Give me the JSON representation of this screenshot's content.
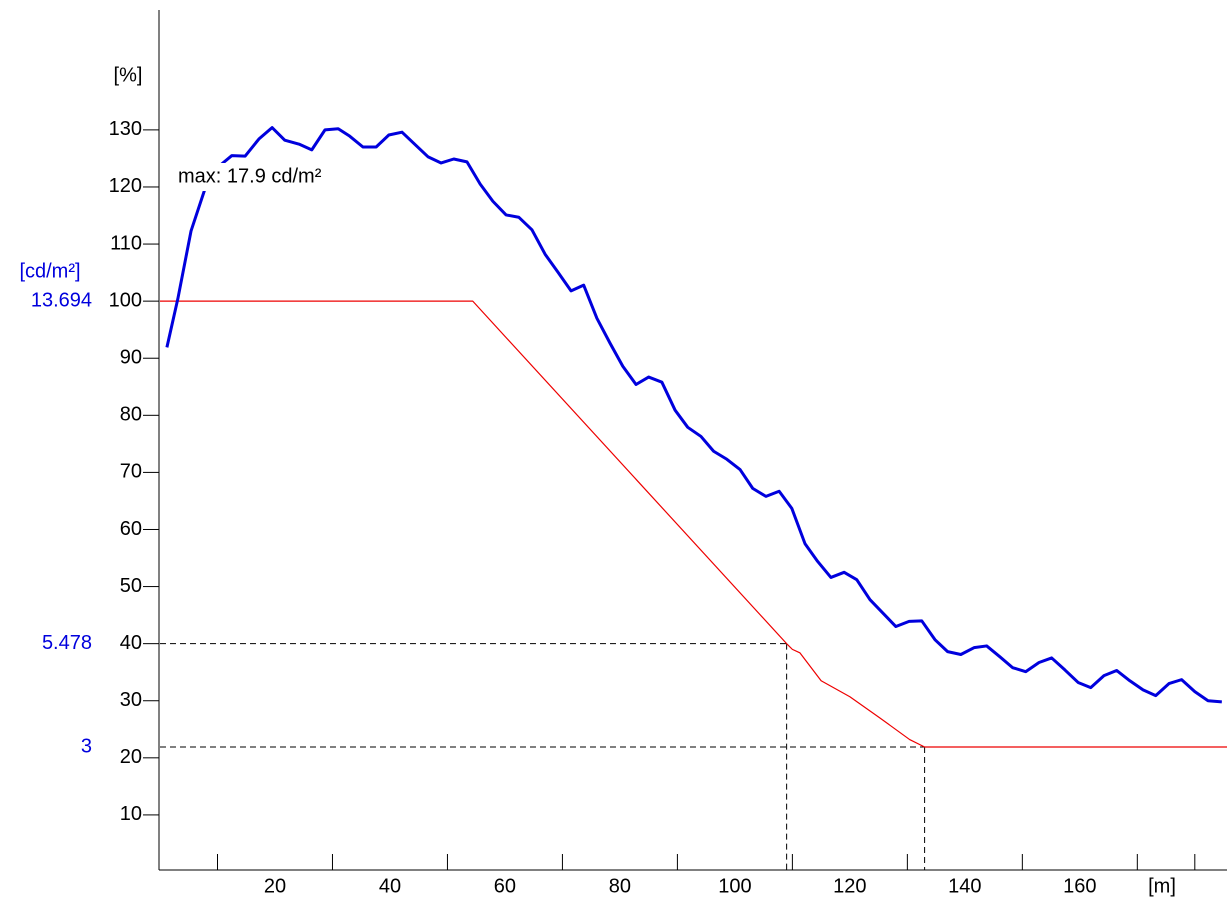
{
  "chart_data": {
    "type": "line",
    "y_label": "[%]",
    "x_label": "[m]",
    "y2_label": "[cd/m²]",
    "annotation": "max: 17.9 cd/m²",
    "xlim": [
      0,
      185.6
    ],
    "ylim": [
      0,
      151
    ],
    "xticks": [
      20,
      40,
      60,
      80,
      100,
      120,
      140,
      160
    ],
    "x_minor_ticks": [
      10,
      30,
      50,
      70,
      90,
      110,
      130,
      150,
      170,
      180
    ],
    "yticks": [
      10,
      20,
      30,
      40,
      50,
      60,
      70,
      80,
      90,
      100,
      110,
      120,
      130
    ],
    "luminance_marks": [
      {
        "value": 100,
        "label": "13.694"
      },
      {
        "value": 40,
        "label": "5.478"
      },
      {
        "value": 21.9,
        "label": "3"
      }
    ],
    "reference_lines": [
      {
        "x": 109,
        "y": 40
      },
      {
        "x": 133,
        "y": 21.9
      }
    ],
    "series": [
      {
        "color": "#0000dd",
        "x": [
          1.2,
          3.1,
          5.4,
          7.8,
          10.1,
          12.5,
          14.8,
          17.2,
          19.5,
          21.7,
          24.2,
          26.4,
          28.7,
          31,
          33,
          35.3,
          37.6,
          39.8,
          42.1,
          44.3,
          46.6,
          48.9,
          51.1,
          53.4,
          55.7,
          57.9,
          60.2,
          62.4,
          64.7,
          67,
          69.2,
          71.5,
          73.7,
          76,
          78.3,
          80.5,
          82.8,
          85,
          87.3,
          89.6,
          91.8,
          94.1,
          96.3,
          98.6,
          100.9,
          103.1,
          105.4,
          107.7,
          109.9,
          112.2,
          114.4,
          116.7,
          119,
          121.2,
          123.5,
          125.7,
          128,
          130.3,
          132.5,
          134.8,
          137,
          139.3,
          141.6,
          143.8,
          146.1,
          148.3,
          150.6,
          152.9,
          155.1,
          157.4,
          159.7,
          161.9,
          164.2,
          166.4,
          168.7,
          171,
          173.2,
          175.5,
          177.7,
          180,
          182.3,
          184.7
        ],
        "values": [
          91.9,
          100.4,
          112.3,
          119.6,
          123.5,
          125.5,
          125.4,
          128.4,
          130.4,
          128.2,
          127.5,
          126.5,
          130,
          130.2,
          128.9,
          127,
          127,
          129.1,
          129.6,
          127.5,
          125.3,
          124.2,
          124.9,
          124.4,
          120.5,
          117.5,
          115.1,
          114.7,
          112.5,
          108.2,
          105.1,
          101.8,
          102.8,
          97,
          92.6,
          88.6,
          85.4,
          86.7,
          85.8,
          80.9,
          77.9,
          76.3,
          73.7,
          72.3,
          70.5,
          67.2,
          65.8,
          66.7,
          63.7,
          57.5,
          54.4,
          51.6,
          52.5,
          51.2,
          47.7,
          45.4,
          43,
          43.9,
          44,
          40.7,
          38.6,
          38.1,
          39.3,
          39.6,
          37.7,
          35.8,
          35.1,
          36.7,
          37.5,
          35.4,
          33.2,
          32.3,
          34.4,
          35.3,
          33.5,
          31.9,
          30.9,
          33,
          33.7,
          31.6,
          30,
          29.8
        ]
      },
      {
        "color": "#ee0000",
        "x": [
          0,
          54.4,
          109,
          110,
          111.3,
          115,
          120,
          125.2,
          130.4,
          133,
          185.6
        ],
        "values": [
          100,
          100,
          40,
          39,
          38.4,
          33.5,
          30.7,
          27,
          23.2,
          21.9,
          21.9
        ]
      }
    ]
  }
}
